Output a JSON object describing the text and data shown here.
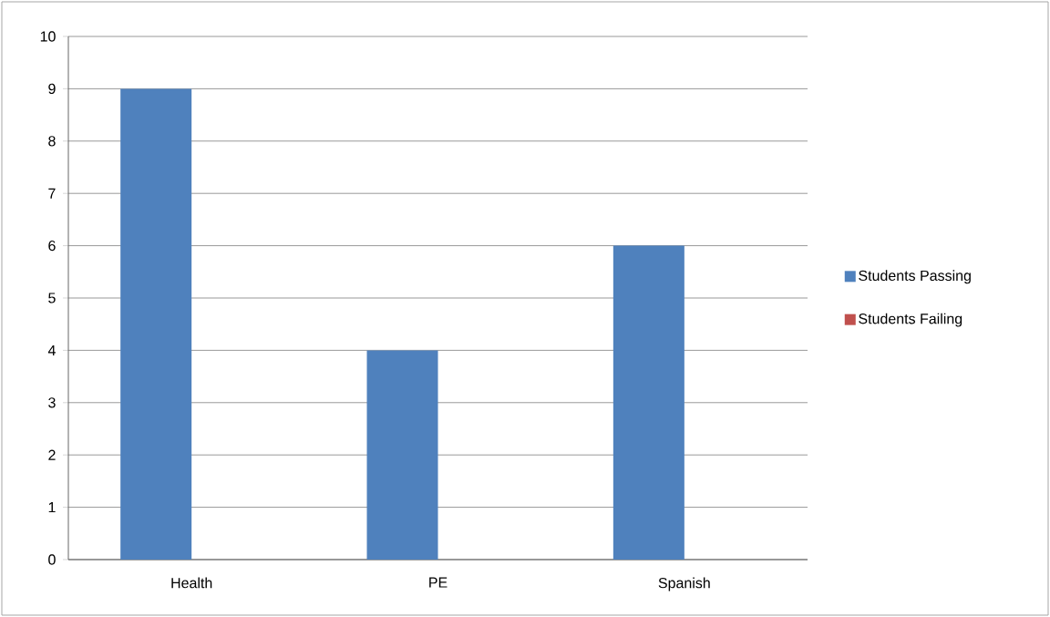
{
  "chart_data": {
    "type": "bar",
    "categories": [
      "Health",
      "PE",
      "Spanish"
    ],
    "series": [
      {
        "name": "Students Passing",
        "color": "#4f81bd",
        "values": [
          9,
          4,
          6
        ]
      },
      {
        "name": "Students Failing",
        "color": "#c0504d",
        "values": [
          0,
          0,
          0
        ]
      }
    ],
    "ylim": [
      0,
      10
    ],
    "yticks": [
      0,
      1,
      2,
      3,
      4,
      5,
      6,
      7,
      8,
      9,
      10
    ],
    "grid": "y",
    "legend": "right"
  }
}
